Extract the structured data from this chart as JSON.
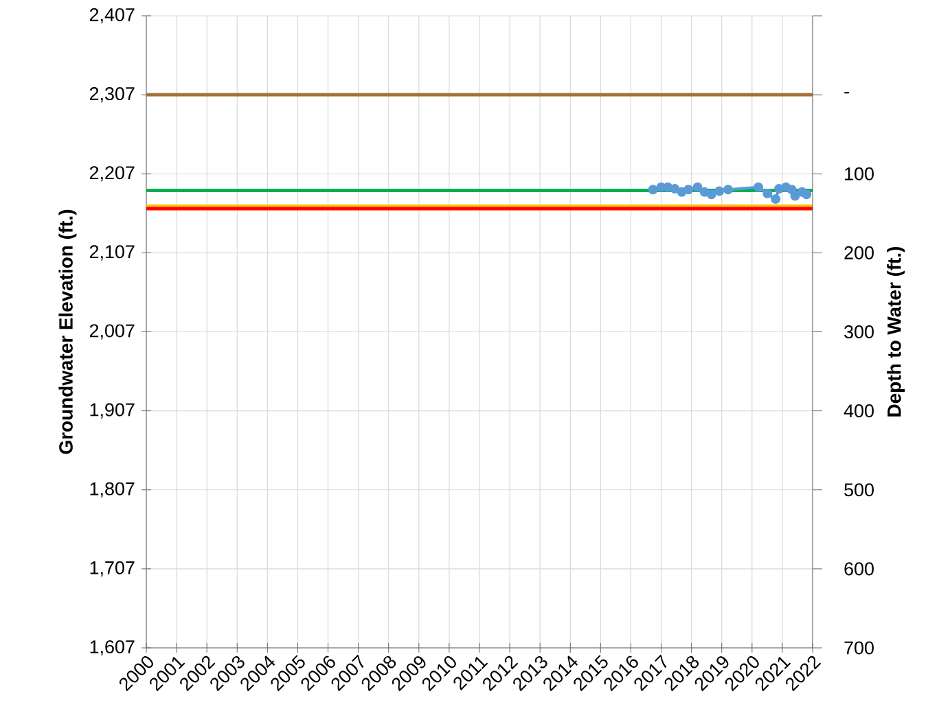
{
  "chart_data": {
    "type": "line",
    "xlabel": null,
    "ylabel": "Groundwater Elevation (ft.)",
    "y2label": "Depth to Water (ft.)",
    "x": [
      2016.73,
      2017.0,
      2017.22,
      2017.45,
      2017.68,
      2017.9,
      2018.2,
      2018.43,
      2018.66,
      2018.92,
      2019.21,
      2020.21,
      2020.51,
      2020.78,
      2020.89,
      2021.12,
      2021.31,
      2021.42,
      2021.65,
      2021.8
    ],
    "series": [
      {
        "color": "#5b9bd5",
        "values": [
          2187,
          2190,
          2190,
          2188,
          2184,
          2187,
          2190,
          2184,
          2181,
          2185,
          2187,
          2190,
          2182,
          2175,
          2188,
          2190,
          2187,
          2179,
          2184,
          2181
        ]
      }
    ],
    "marker": "circle",
    "line_style": "solid",
    "grid": true,
    "xlim": [
      2000,
      2022
    ],
    "xticks": [
      2000,
      2001,
      2002,
      2003,
      2004,
      2005,
      2006,
      2007,
      2008,
      2009,
      2010,
      2011,
      2012,
      2013,
      2014,
      2015,
      2016,
      2017,
      2018,
      2019,
      2020,
      2021,
      2022
    ],
    "ylim": [
      1607,
      2407
    ],
    "yticks": [
      {
        "value": 1607,
        "label": "1,607"
      },
      {
        "value": 1707,
        "label": "1,707"
      },
      {
        "value": 1807,
        "label": "1,807"
      },
      {
        "value": 1907,
        "label": "1,907"
      },
      {
        "value": 2007,
        "label": "2,007"
      },
      {
        "value": 2107,
        "label": "2,107"
      },
      {
        "value": 2207,
        "label": "2,207"
      },
      {
        "value": 2307,
        "label": "2,307"
      },
      {
        "value": 2407,
        "label": "2,407"
      }
    ],
    "y2lim": [
      700,
      -100
    ],
    "y2ticks": [
      {
        "value": -100,
        "label": null
      },
      {
        "value": 0,
        "label": "-"
      },
      100,
      200,
      300,
      400,
      500,
      600,
      700
    ],
    "ref_lines": [
      {
        "axis": "y",
        "value": 2307,
        "color": "#a5723a"
      },
      {
        "axis": "y",
        "value": 2186,
        "color": "#00b050"
      },
      {
        "axis": "y",
        "value": 2166,
        "color": "#ffc000"
      },
      {
        "axis": "y",
        "value": 2163,
        "color": "#ff0000"
      }
    ]
  }
}
